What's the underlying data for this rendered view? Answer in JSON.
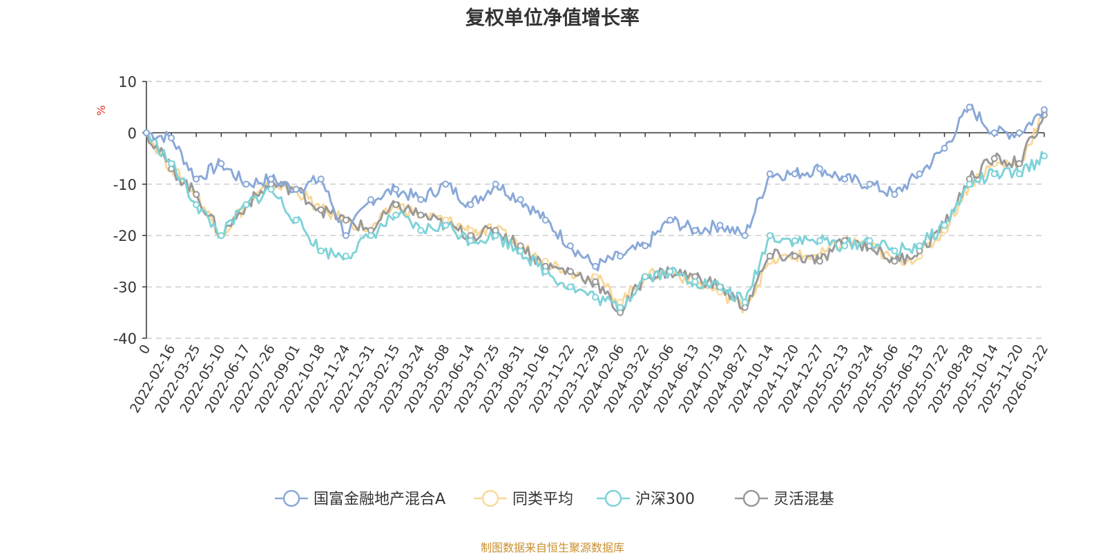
{
  "chart_data": {
    "type": "line",
    "title": "复权单位净值增长率",
    "ylabel": "%",
    "xlabel": "",
    "ylim": [
      -40,
      10
    ],
    "yticks": [
      10,
      0,
      -10,
      -20,
      -30,
      -40
    ],
    "grid": true,
    "legend_position": "bottom",
    "source": "制图数据来自恒生聚源数据库",
    "categories": [
      "0",
      "2022-02-16",
      "2022-03-25",
      "2022-05-10",
      "2022-06-17",
      "2022-07-26",
      "2022-09-01",
      "2022-10-18",
      "2022-11-24",
      "2022-12-31",
      "2023-02-15",
      "2023-03-24",
      "2023-05-08",
      "2023-06-14",
      "2023-07-25",
      "2023-08-31",
      "2023-10-16",
      "2023-11-22",
      "2023-12-29",
      "2024-02-06",
      "2024-03-22",
      "2024-05-06",
      "2024-06-13",
      "2024-07-19",
      "2024-08-27",
      "2024-10-14",
      "2024-11-20",
      "2024-12-27",
      "2025-02-13",
      "2025-03-24",
      "2025-05-06",
      "2025-06-13",
      "2025-07-22",
      "2025-08-28",
      "2025-10-14",
      "2025-11-20",
      "2026-01-22"
    ],
    "series": [
      {
        "name": "国富金融地产混合A",
        "color": "#8aa9d8",
        "values": [
          0,
          -1,
          -9,
          -6,
          -10,
          -9,
          -11,
          -9,
          -20,
          -13,
          -11,
          -13,
          -10,
          -14,
          -10,
          -13,
          -17,
          -22,
          -26,
          -24,
          -22,
          -17,
          -19,
          -18,
          -20,
          -8,
          -8,
          -7,
          -9,
          -10,
          -12,
          -8,
          -3,
          5,
          0,
          0,
          4.5
        ]
      },
      {
        "name": "同类平均",
        "color": "#f9d89a",
        "values": [
          0,
          -7,
          -12,
          -20,
          -14,
          -10,
          -11,
          -15,
          -17,
          -19,
          -14,
          -16,
          -17,
          -19,
          -19,
          -22,
          -25,
          -27,
          -28,
          -33,
          -28,
          -27,
          -29,
          -31,
          -34,
          -25,
          -24,
          -24,
          -21,
          -22,
          -25,
          -24,
          -19,
          -10,
          -6,
          -6,
          4
        ]
      },
      {
        "name": "沪深300",
        "color": "#7fd3d8",
        "values": [
          0,
          -6,
          -14,
          -20,
          -14,
          -11,
          -17,
          -23,
          -24,
          -20,
          -16,
          -19,
          -18,
          -21,
          -20,
          -23,
          -27,
          -30,
          -32,
          -34,
          -28,
          -27,
          -29,
          -30,
          -33,
          -20,
          -21,
          -21,
          -22,
          -21,
          -23,
          -22,
          -18,
          -10,
          -8,
          -8,
          -4.5
        ]
      },
      {
        "name": "灵活混基",
        "color": "#999999",
        "values": [
          0,
          -7,
          -12,
          -20,
          -14,
          -10,
          -11,
          -15,
          -17,
          -19,
          -14,
          -16,
          -18,
          -20,
          -19,
          -22,
          -26,
          -27,
          -29,
          -35,
          -28,
          -27,
          -28,
          -30,
          -34,
          -24,
          -24,
          -25,
          -21,
          -22,
          -25,
          -23,
          -18,
          -9,
          -5,
          -6,
          3.5
        ]
      }
    ]
  },
  "colors": {
    "title": "#333333",
    "source_text": "#c8902c",
    "ylabel": "#e8302c",
    "axis": "#333333",
    "grid": "#cccccc"
  }
}
